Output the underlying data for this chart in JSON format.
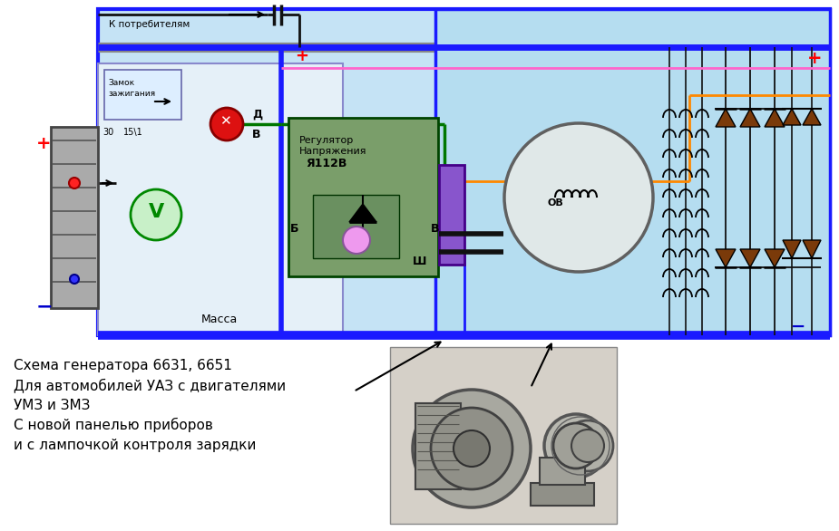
{
  "bg_color": "#ffffff",
  "diagram_bg": "#c5e3f5",
  "left_panel_bg": "#ddeef8",
  "blue_border": "#1a1aff",
  "text_lines": [
    "Схема генератора 6631, 6651",
    "Для автомобилей УАЗ с двигателями",
    "УМЗ и ЗМЗ",
    "С новой панелью приборов",
    "и с лампочкой контроля зарядки"
  ],
  "wire_blue": "#1a1aff",
  "wire_red": "#ff0000",
  "wire_green": "#007700",
  "wire_pink": "#ff66cc",
  "wire_orange": "#ff8800",
  "wire_black": "#111111",
  "wire_gray": "#888888",
  "regulator_color": "#7a9e6a",
  "connector_color": "#8855cc",
  "diode_color": "#7a3a0a",
  "photo_bg": "#c8c8c8"
}
